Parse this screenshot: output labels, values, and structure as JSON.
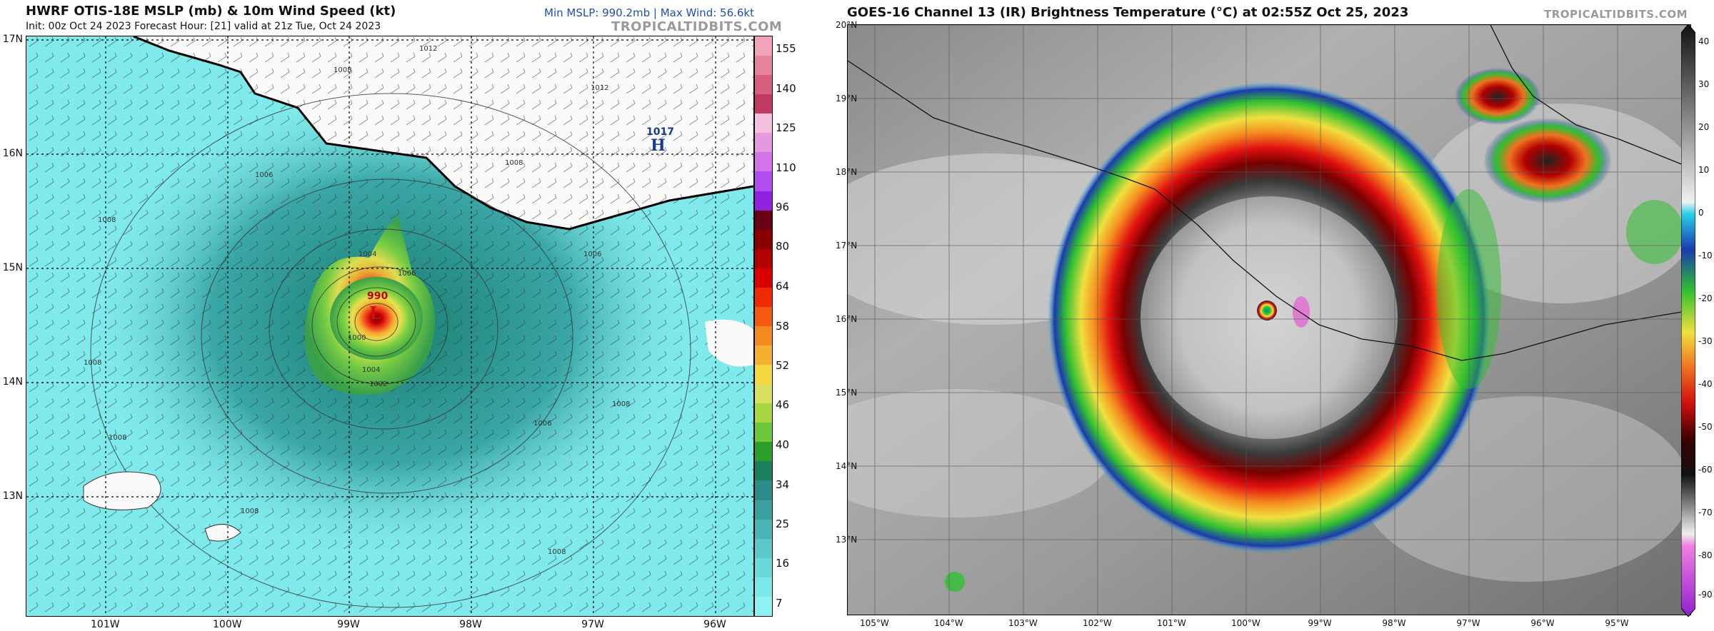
{
  "left": {
    "title": "HWRF OTIS-18E MSLP (mb) & 10m Wind Speed (kt)",
    "subtitle": "Init: 00z Oct 24 2023   Forecast Hour: [21]   valid at 21z Tue, Oct 24 2023",
    "stats": "Min MSLP: 990.2mb | Max Wind: 56.6kt",
    "brand": "TROPICALTIDBITS.COM",
    "lat_labels": [
      "17N",
      "16N",
      "15N",
      "14N",
      "13N"
    ],
    "lon_labels": [
      "101W",
      "100W",
      "99W",
      "98W",
      "97W",
      "96W"
    ],
    "contour_labels": [
      "1012",
      "1008",
      "1012",
      "1008",
      "1006",
      "1008",
      "1004",
      "1006",
      "1006",
      "1004",
      "1002",
      "1008",
      "1008",
      "1006",
      "1008",
      "1008",
      "1008",
      "1000"
    ],
    "low_label": "990",
    "low_letter": "L",
    "high_label": "1017",
    "high_letter": "H",
    "colorbar_labels": [
      "155",
      "140",
      "125",
      "110",
      "96",
      "80",
      "64",
      "58",
      "52",
      "46",
      "40",
      "34",
      "25",
      "16",
      "7"
    ],
    "colorbar_colors": [
      "#f1a3b9",
      "#e7839d",
      "#d75f80",
      "#c23a64",
      "#f3c0e0",
      "#e59ae0",
      "#d472e8",
      "#b04cf0",
      "#9020e0",
      "#6a0016",
      "#8a0000",
      "#b00000",
      "#d80000",
      "#f02a00",
      "#f55a10",
      "#f58a20",
      "#f5b030",
      "#f5d840",
      "#d8e060",
      "#a8d840",
      "#6cc838",
      "#2aa02a",
      "#1c7f5c",
      "#2c8c8a",
      "#3aa0a0",
      "#4cb4b4",
      "#5cc8c8",
      "#6cd8d8",
      "#7ce8e8",
      "#8ef2f2"
    ]
  },
  "right": {
    "title": "GOES-16 Channel 13 (IR) Brightness Temperature (°C) at 02:55Z Oct 25, 2023",
    "brand": "TROPICALTIDBITS.COM",
    "lat_labels": [
      "20°N",
      "19°N",
      "18°N",
      "17°N",
      "16°N",
      "15°N",
      "14°N",
      "13°N"
    ],
    "lon_labels": [
      "105°W",
      "104°W",
      "103°W",
      "102°W",
      "101°W",
      "100°W",
      "99°W",
      "98°W",
      "97°W",
      "96°W",
      "95°W"
    ],
    "colorbar_labels": [
      "40",
      "30",
      "20",
      "10",
      "0",
      "-10",
      "-20",
      "-30",
      "-40",
      "-50",
      "-60",
      "-70",
      "-80",
      "-90"
    ]
  }
}
